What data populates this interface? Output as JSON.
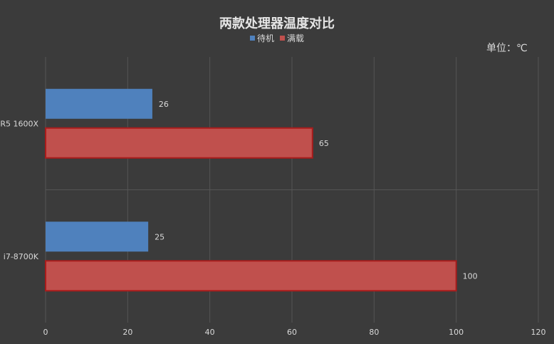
{
  "chart_data": {
    "type": "bar",
    "orientation": "horizontal",
    "title": "两款处理器温度对比",
    "unit_label": "单位：℃",
    "categories": [
      "R5 1600X",
      "i7-8700K"
    ],
    "series": [
      {
        "name": "待机",
        "color": "#4f81bd",
        "values": [
          26,
          25
        ]
      },
      {
        "name": "满载",
        "color": "#c0504d",
        "values": [
          65,
          100
        ]
      }
    ],
    "xlim": [
      0,
      120
    ],
    "xticks": [
      0,
      20,
      40,
      60,
      80,
      100,
      120
    ],
    "grid": true,
    "legend_position": "top-center",
    "data_labels": true
  }
}
